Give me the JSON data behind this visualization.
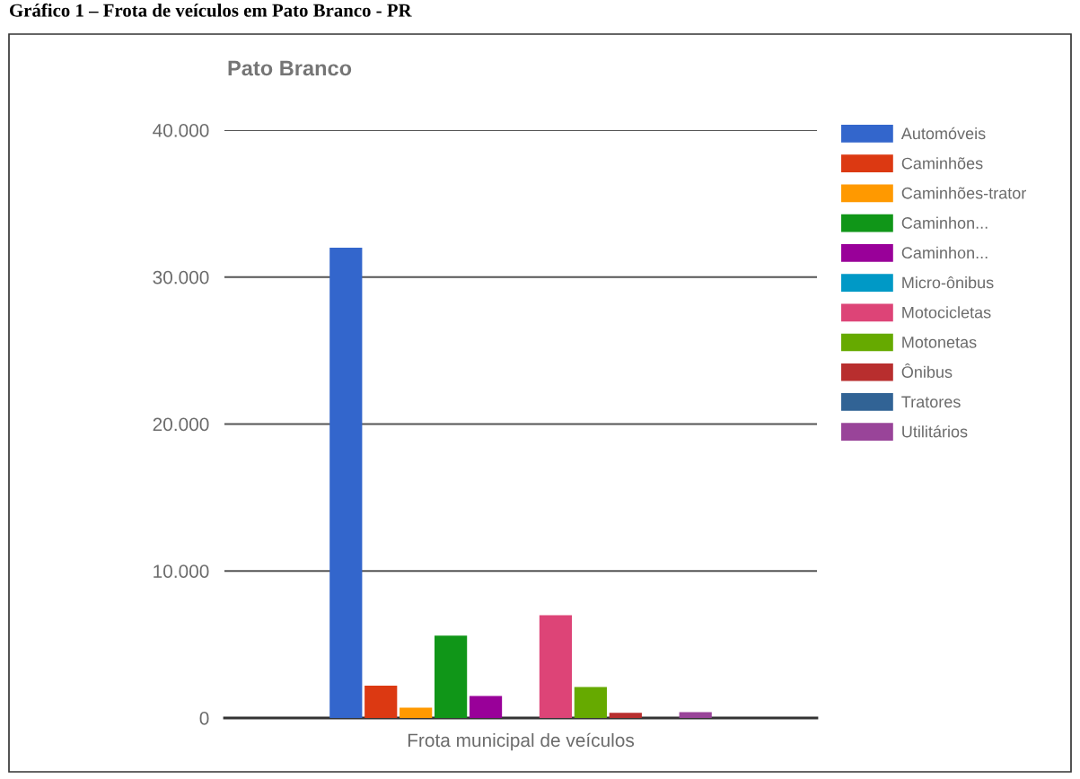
{
  "chart_data": {
    "type": "bar",
    "title": "Pato Branco",
    "annotations": [
      "Gráfico 1 – Frota de veículos em Pato Branco - PR"
    ],
    "categories": [
      "Frota municipal de veículos"
    ],
    "series": [
      {
        "name": "Automóveis",
        "color": "#3366cc",
        "values": [
          32000
        ]
      },
      {
        "name": "Caminhões",
        "color": "#dc3912",
        "values": [
          2200
        ]
      },
      {
        "name": "Caminhões-trator",
        "color": "#ff9900",
        "values": [
          700
        ]
      },
      {
        "name": "Caminhon...",
        "color": "#109618",
        "values": [
          5600
        ]
      },
      {
        "name": "Caminhon...",
        "color": "#990099",
        "values": [
          1500
        ]
      },
      {
        "name": "Micro-ônibus",
        "color": "#0099c6",
        "values": [
          0
        ]
      },
      {
        "name": "Motocicletas",
        "color": "#dd4477",
        "values": [
          7000
        ]
      },
      {
        "name": "Motonetas",
        "color": "#66aa00",
        "values": [
          2100
        ]
      },
      {
        "name": "Ônibus",
        "color": "#b82e2e",
        "values": [
          350
        ]
      },
      {
        "name": "Tratores",
        "color": "#316395",
        "values": [
          0
        ]
      },
      {
        "name": "Utilitários",
        "color": "#994499",
        "values": [
          400
        ]
      }
    ],
    "ylim": [
      0,
      40000
    ],
    "yticks": [
      {
        "value": 0,
        "label": "0"
      },
      {
        "value": 10000,
        "label": "10.000"
      },
      {
        "value": 20000,
        "label": "20.000"
      },
      {
        "value": 30000,
        "label": "30.000"
      },
      {
        "value": 40000,
        "label": "40.000"
      }
    ],
    "grid": "y",
    "legend": "right"
  }
}
